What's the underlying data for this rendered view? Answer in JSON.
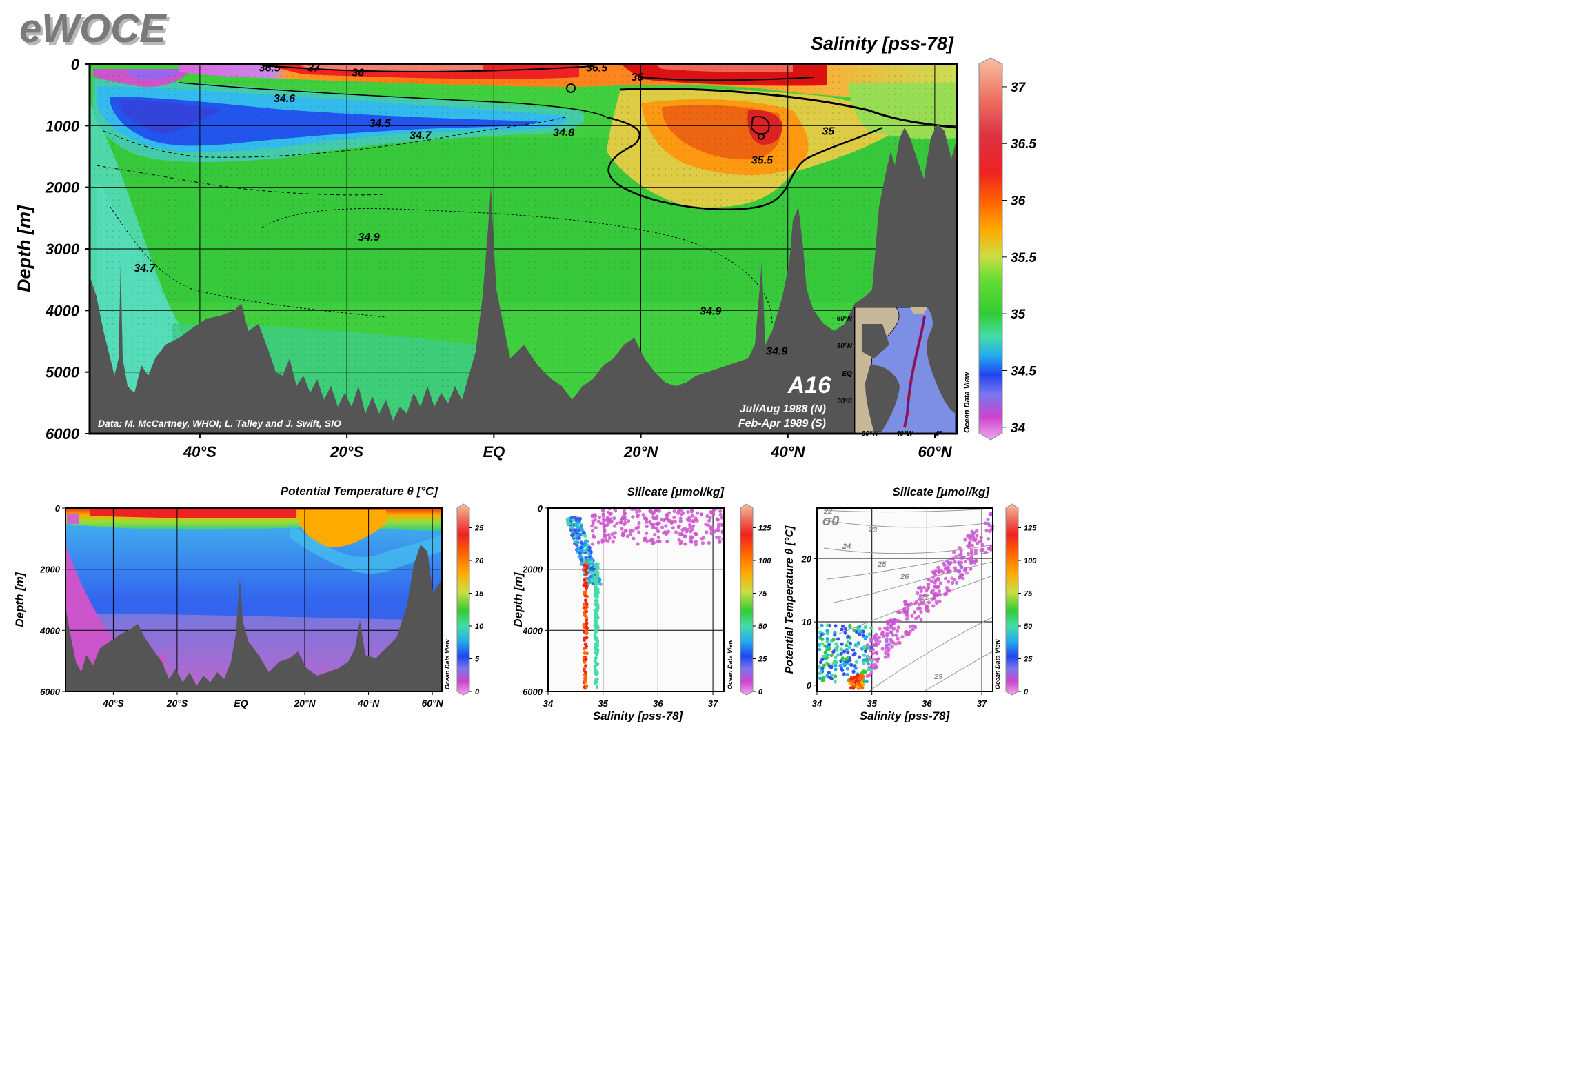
{
  "header": {
    "logo": "eWOCE"
  },
  "chart_data": [
    {
      "id": "main-section",
      "type": "heatmap",
      "title": "Salinity [pss-78]",
      "ylabel": "Depth [m]",
      "xlabel": "",
      "ylim": [
        6000,
        0
      ],
      "xlim": [
        -55,
        63
      ],
      "x_ticks": [
        {
          "v": -40,
          "label": "40°S"
        },
        {
          "v": -20,
          "label": "20°S"
        },
        {
          "v": 0,
          "label": "EQ"
        },
        {
          "v": 20,
          "label": "20°N"
        },
        {
          "v": 40,
          "label": "40°N"
        },
        {
          "v": 60,
          "label": "60°N"
        }
      ],
      "y_ticks": [
        {
          "v": 0,
          "label": "0"
        },
        {
          "v": 1000,
          "label": "1000"
        },
        {
          "v": 2000,
          "label": "2000"
        },
        {
          "v": 3000,
          "label": "3000"
        },
        {
          "v": 4000,
          "label": "4000"
        },
        {
          "v": 5000,
          "label": "5000"
        },
        {
          "v": 6000,
          "label": "6000"
        }
      ],
      "colorbar": {
        "min": 33.95,
        "max": 37.2,
        "ticks": [
          34,
          34.5,
          35,
          35.5,
          36,
          36.5,
          37
        ]
      },
      "contour_labels": [
        {
          "text": "36.5",
          "x": -30.5,
          "y": 50
        },
        {
          "text": "37",
          "x": -24.5,
          "y": 50
        },
        {
          "text": "36",
          "x": -18.5,
          "y": 130
        },
        {
          "text": "36.5",
          "x": 14,
          "y": 50
        },
        {
          "text": "36",
          "x": 19.5,
          "y": 200
        },
        {
          "text": "34.6",
          "x": -28.5,
          "y": 550
        },
        {
          "text": "34.5",
          "x": -15.5,
          "y": 950
        },
        {
          "text": "34.7",
          "x": -10,
          "y": 1150
        },
        {
          "text": "34.8",
          "x": 9.5,
          "y": 1100
        },
        {
          "text": "35",
          "x": 45.5,
          "y": 1080
        },
        {
          "text": "35.5",
          "x": 36.5,
          "y": 1550
        },
        {
          "text": "34.9",
          "x": -17,
          "y": 2800
        },
        {
          "text": "34.7",
          "x": -47.5,
          "y": 3300
        },
        {
          "text": "34.9",
          "x": 29.5,
          "y": 4000
        },
        {
          "text": "34.9",
          "x": 38.5,
          "y": 4650
        }
      ],
      "annotations": {
        "credit": "Data: M. McCartney, WHOI; L. Talley and J. Swift, SIO",
        "section": "A16",
        "cruise_north": "Jul/Aug 1988 (N)",
        "cruise_south": "Feb-Apr 1989 (S)",
        "brand": "Ocean Data View"
      },
      "inset_map": {
        "lat_labels": [
          "60°N",
          "30°N",
          "EQ",
          "30°S"
        ],
        "lon_labels": [
          "80°W",
          "40°W",
          "0°"
        ]
      }
    },
    {
      "id": "theta-section",
      "type": "heatmap",
      "title": "Potential Temperature θ [°C]",
      "ylabel": "Depth [m]",
      "xlabel": "",
      "ylim": [
        6000,
        0
      ],
      "xlim": [
        -55,
        63
      ],
      "x_ticks": [
        {
          "v": -40,
          "label": "40°S"
        },
        {
          "v": -20,
          "label": "20°S"
        },
        {
          "v": 0,
          "label": "EQ"
        },
        {
          "v": 20,
          "label": "20°N"
        },
        {
          "v": 40,
          "label": "40°N"
        },
        {
          "v": 60,
          "label": "60°N"
        }
      ],
      "y_ticks": [
        {
          "v": 0,
          "label": "0"
        },
        {
          "v": 2000,
          "label": "2000"
        },
        {
          "v": 4000,
          "label": "4000"
        },
        {
          "v": 6000,
          "label": "6000"
        }
      ],
      "colorbar": {
        "min": 0,
        "max": 28,
        "ticks": [
          0,
          5,
          10,
          15,
          20,
          25
        ]
      },
      "brand": "Ocean Data View"
    },
    {
      "id": "salinity-depth",
      "type": "scatter",
      "title": "Silicate [μmol/kg]",
      "xlabel": "Salinity [pss-78]",
      "ylabel": "Depth [m]",
      "xlim": [
        34,
        37.2
      ],
      "ylim": [
        6000,
        0
      ],
      "x_ticks": [
        {
          "v": 34,
          "label": "34"
        },
        {
          "v": 35,
          "label": "35"
        },
        {
          "v": 36,
          "label": "36"
        },
        {
          "v": 37,
          "label": "37"
        }
      ],
      "y_ticks": [
        {
          "v": 0,
          "label": "0"
        },
        {
          "v": 2000,
          "label": "2000"
        },
        {
          "v": 4000,
          "label": "4000"
        },
        {
          "v": 6000,
          "label": "6000"
        }
      ],
      "colorbar": {
        "min": 0,
        "max": 140,
        "ticks": [
          0,
          25,
          50,
          75,
          100,
          125
        ]
      },
      "brand": "Ocean Data View"
    },
    {
      "id": "ts-diagram",
      "type": "scatter",
      "title": "Silicate [μmol/kg]",
      "xlabel": "Salinity [pss-78]",
      "ylabel": "Potential Temperature θ [°C]",
      "xlim": [
        34,
        37.2
      ],
      "ylim": [
        -1,
        28
      ],
      "x_ticks": [
        {
          "v": 34,
          "label": "34"
        },
        {
          "v": 35,
          "label": "35"
        },
        {
          "v": 36,
          "label": "36"
        },
        {
          "v": 37,
          "label": "37"
        }
      ],
      "y_ticks": [
        {
          "v": 0,
          "label": "0"
        },
        {
          "v": 10,
          "label": "10"
        },
        {
          "v": 20,
          "label": "20"
        }
      ],
      "density_symbol": "σ0",
      "density_labels": [
        "22",
        "23",
        "24",
        "25",
        "26",
        "27",
        "29"
      ],
      "colorbar": {
        "min": 0,
        "max": 140,
        "ticks": [
          0,
          25,
          50,
          75,
          100,
          125
        ]
      },
      "brand": "Ocean Data View"
    }
  ]
}
